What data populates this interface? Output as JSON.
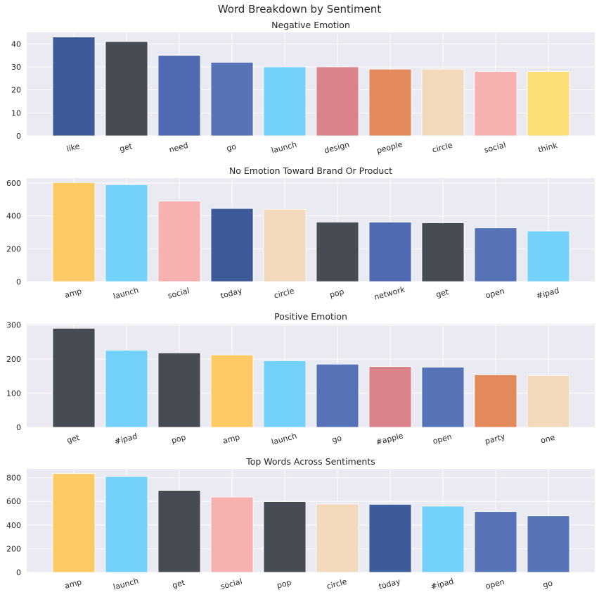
{
  "suptitle": "Word Breakdown by Sentiment",
  "chart_data": [
    {
      "type": "bar",
      "title": "Negative Emotion",
      "categories": [
        "like",
        "get",
        "need",
        "go",
        "launch",
        "design",
        "people",
        "circle",
        "social",
        "think"
      ],
      "values": [
        43,
        41,
        35,
        32,
        30,
        30,
        29,
        29,
        28,
        28
      ],
      "colors": [
        "#3d5a99",
        "#474c54",
        "#5069b3",
        "#5673b8",
        "#73d1fb",
        "#da838a",
        "#e28a5c",
        "#f3d9bc",
        "#f6b1b0",
        "#fede77"
      ],
      "ylim": [
        0,
        45
      ],
      "yticks": [
        0,
        10,
        20,
        30,
        40
      ]
    },
    {
      "type": "bar",
      "title": "No Emotion Toward Brand Or Product",
      "categories": [
        "amp",
        "launch",
        "social",
        "today",
        "circle",
        "pop",
        "network",
        "get",
        "open",
        "#ipad"
      ],
      "values": [
        603,
        590,
        490,
        445,
        440,
        362,
        362,
        358,
        327,
        308
      ],
      "colors": [
        "#fdca65",
        "#73d1fb",
        "#f6b1b0",
        "#3d5a99",
        "#f3d9bc",
        "#474c54",
        "#5069b3",
        "#474c54",
        "#5673b8",
        "#73d1fb"
      ],
      "ylim": [
        0,
        630
      ],
      "yticks": [
        0,
        200,
        400,
        600
      ]
    },
    {
      "type": "bar",
      "title": "Positive Emotion",
      "categories": [
        "get",
        "#ipad",
        "pop",
        "amp",
        "launch",
        "go",
        "#apple",
        "open",
        "party",
        "one"
      ],
      "values": [
        290,
        226,
        218,
        212,
        195,
        185,
        178,
        176,
        154,
        152
      ],
      "colors": [
        "#474c54",
        "#73d1fb",
        "#474c54",
        "#fdca65",
        "#73d1fb",
        "#5673b8",
        "#da838a",
        "#5673b8",
        "#e28a5c",
        "#f3d9bc"
      ],
      "ylim": [
        0,
        303
      ],
      "yticks": [
        0,
        100,
        200,
        300
      ]
    },
    {
      "type": "bar",
      "title": "Top Words Across Sentiments",
      "categories": [
        "amp",
        "launch",
        "get",
        "social",
        "pop",
        "circle",
        "today",
        "#ipad",
        "open",
        "go"
      ],
      "values": [
        835,
        812,
        693,
        637,
        598,
        578,
        575,
        560,
        514,
        478
      ],
      "colors": [
        "#fdca65",
        "#73d1fb",
        "#474c54",
        "#f6b1b0",
        "#474c54",
        "#f3d9bc",
        "#3d5a99",
        "#73d1fb",
        "#5673b8",
        "#5673b8"
      ],
      "ylim": [
        0,
        875
      ],
      "yticks": [
        0,
        200,
        400,
        600,
        800
      ]
    }
  ]
}
